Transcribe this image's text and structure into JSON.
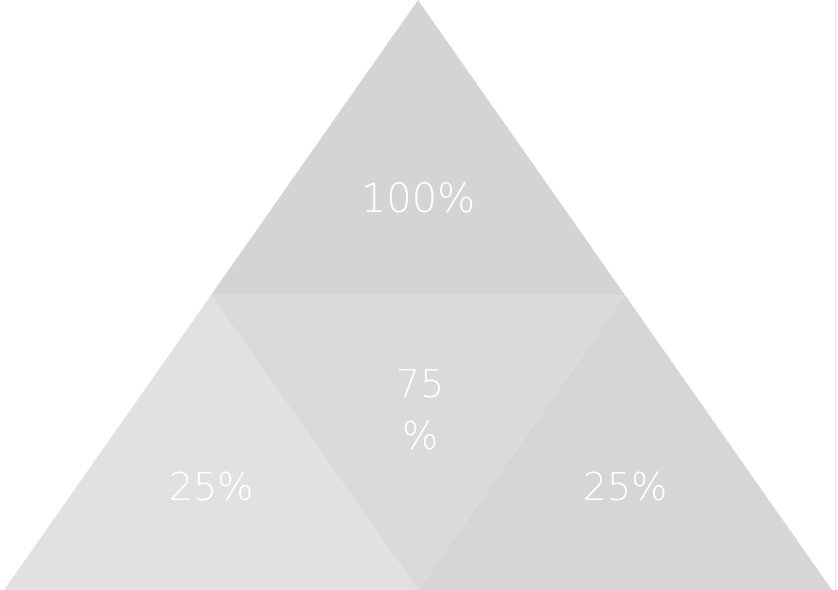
{
  "diagram": {
    "segments": {
      "top": {
        "label": "100%",
        "color": "#d4d4d4"
      },
      "middle": {
        "label_line1": "75",
        "label_line2": "%",
        "color": "#dadada"
      },
      "bottom_left": {
        "label": "25%",
        "color": "#e1e1e1"
      },
      "bottom_right": {
        "label": "25%",
        "color": "#d6d6d6"
      }
    }
  }
}
